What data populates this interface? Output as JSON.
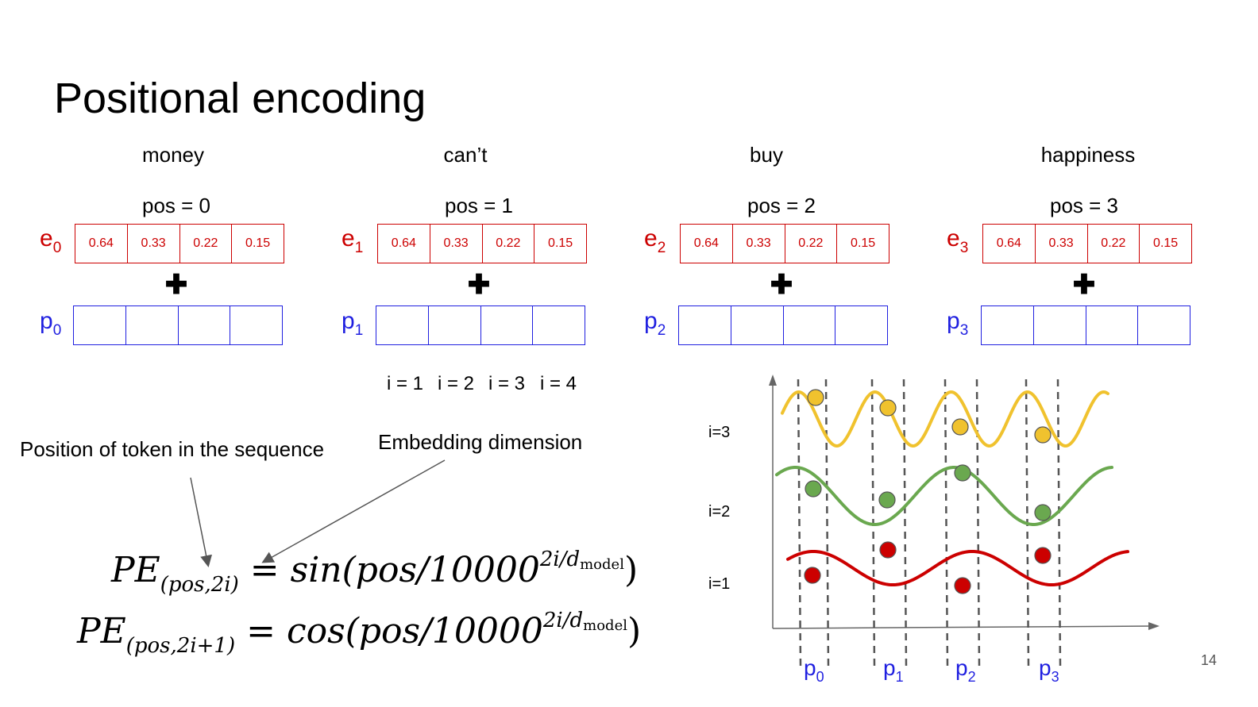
{
  "title": "Positional encoding",
  "tokens": [
    {
      "word": "money",
      "pos": "pos = 0",
      "e_base": "e",
      "e_sub": "0",
      "p_base": "p",
      "p_sub": "0",
      "values": [
        "0.64",
        "0.33",
        "0.22",
        "0.15"
      ]
    },
    {
      "word": "can’t",
      "pos": "pos = 1",
      "e_base": "e",
      "e_sub": "1",
      "p_base": "p",
      "p_sub": "1",
      "values": [
        "0.64",
        "0.33",
        "0.22",
        "0.15"
      ]
    },
    {
      "word": "buy",
      "pos": "pos = 2",
      "e_base": "e",
      "e_sub": "2",
      "p_base": "p",
      "p_sub": "2",
      "values": [
        "0.64",
        "0.33",
        "0.22",
        "0.15"
      ]
    },
    {
      "word": "happiness",
      "pos": "pos = 3",
      "e_base": "e",
      "e_sub": "3",
      "p_base": "p",
      "p_sub": "3",
      "values": [
        "0.64",
        "0.33",
        "0.22",
        "0.15"
      ]
    }
  ],
  "plus_symbol": "✚",
  "index_labels": [
    "i = 1",
    "i = 2",
    "i = 3",
    "i = 4"
  ],
  "annotations": {
    "position": "Position of token in the sequence",
    "dimension": "Embedding dimension"
  },
  "formula": {
    "line1": {
      "lhs": "PE",
      "lhs_sub": "(pos,2i)",
      "rhs": "= sin(pos/10000",
      "sup": "2i/d",
      "sup_sub": "model",
      "close": ")"
    },
    "line2": {
      "lhs": "PE",
      "lhs_sub": "(pos,2i+1)",
      "rhs": "= cos(pos/10000",
      "sup": "2i/d",
      "sup_sub": "model",
      "close": ")"
    }
  },
  "plot": {
    "row_labels": [
      "i=3",
      "i=2",
      "i=1"
    ],
    "tick_labels": [
      {
        "base": "p",
        "sub": "0"
      },
      {
        "base": "p",
        "sub": "1"
      },
      {
        "base": "p",
        "sub": "2"
      },
      {
        "base": "p",
        "sub": "3"
      }
    ],
    "colors": {
      "i3": "#f0c22e",
      "i2": "#6aa84f",
      "i1": "#cc0000",
      "axis": "#666666",
      "dash": "#555555"
    }
  },
  "page_number": "14"
}
